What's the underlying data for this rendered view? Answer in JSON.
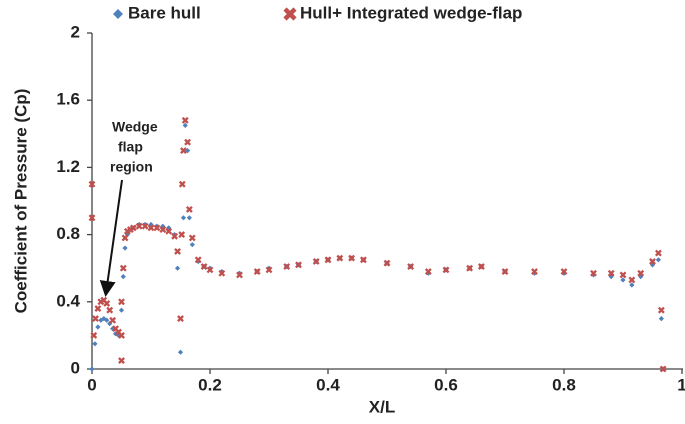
{
  "chart_data": {
    "type": "scatter",
    "xlabel": "X/L",
    "ylabel": "Coefficient of Pressure (Cp)",
    "annotation": [
      "Wedge",
      "flap",
      "region"
    ],
    "xlim": [
      0,
      1
    ],
    "xticks": [
      0,
      0.2,
      0.4,
      0.6,
      0.8,
      1
    ],
    "ylim": [
      0,
      2
    ],
    "yticks": [
      0,
      0.4,
      0.8,
      1.2,
      1.6,
      2
    ],
    "series": [
      {
        "name": "Bare hull",
        "color": "#4f81bd",
        "marker": "diamond",
        "x": [
          0,
          0.005,
          0.01,
          0.015,
          0.02,
          0.025,
          0.03,
          0.035,
          0.04,
          0.045,
          0.05,
          0.053,
          0.056,
          0.06,
          0.065,
          0.07,
          0.08,
          0.09,
          0.1,
          0.11,
          0.12,
          0.13,
          0.14,
          0.145,
          0.15,
          0.155,
          0.158,
          0.162,
          0.165,
          0.17,
          0.18,
          0.19,
          0.2,
          0.22,
          0.25,
          0.28,
          0.3,
          0.33,
          0.35,
          0.38,
          0.4,
          0.42,
          0.44,
          0.46,
          0.5,
          0.54,
          0.57,
          0.6,
          0.64,
          0.66,
          0.7,
          0.75,
          0.8,
          0.85,
          0.88,
          0.9,
          0.915,
          0.93,
          0.95,
          0.96,
          0.965,
          0.968
        ],
        "values": [
          0,
          0.15,
          0.25,
          0.29,
          0.3,
          0.29,
          0.27,
          0.24,
          0.21,
          0.2,
          0.35,
          0.55,
          0.72,
          0.8,
          0.83,
          0.84,
          0.86,
          0.86,
          0.86,
          0.85,
          0.85,
          0.84,
          0.8,
          0.6,
          0.1,
          0.9,
          1.45,
          1.3,
          0.9,
          0.74,
          0.64,
          0.61,
          0.6,
          0.58,
          0.57,
          0.58,
          0.6,
          0.61,
          0.62,
          0.64,
          0.65,
          0.66,
          0.66,
          0.65,
          0.63,
          0.61,
          0.57,
          0.59,
          0.6,
          0.61,
          0.58,
          0.57,
          0.57,
          0.56,
          0.55,
          0.53,
          0.5,
          0.55,
          0.62,
          0.65,
          0.3,
          0
        ]
      },
      {
        "name": "Hull+ Integrated wedge-flap",
        "color": "#c0504d",
        "marker": "x",
        "x": [
          0,
          0,
          0.003,
          0.006,
          0.01,
          0.015,
          0.02,
          0.025,
          0.03,
          0.035,
          0.04,
          0.045,
          0.05,
          0.05,
          0.05,
          0.053,
          0.056,
          0.06,
          0.065,
          0.07,
          0.08,
          0.09,
          0.1,
          0.11,
          0.12,
          0.13,
          0.14,
          0.145,
          0.15,
          0.152,
          0.153,
          0.155,
          0.158,
          0.162,
          0.165,
          0.17,
          0.18,
          0.19,
          0.2,
          0.22,
          0.25,
          0.28,
          0.3,
          0.33,
          0.35,
          0.38,
          0.4,
          0.42,
          0.44,
          0.46,
          0.5,
          0.54,
          0.57,
          0.6,
          0.64,
          0.66,
          0.7,
          0.75,
          0.8,
          0.85,
          0.88,
          0.9,
          0.915,
          0.93,
          0.95,
          0.96,
          0.965,
          0.968
        ],
        "values": [
          1.1,
          0.9,
          0.2,
          0.3,
          0.36,
          0.4,
          0.41,
          0.39,
          0.35,
          0.29,
          0.24,
          0.22,
          0.4,
          0.2,
          0.05,
          0.6,
          0.78,
          0.82,
          0.83,
          0.84,
          0.85,
          0.85,
          0.84,
          0.84,
          0.83,
          0.82,
          0.79,
          0.7,
          0.3,
          0.8,
          1.1,
          1.3,
          1.48,
          1.35,
          0.95,
          0.78,
          0.65,
          0.61,
          0.59,
          0.57,
          0.56,
          0.58,
          0.59,
          0.61,
          0.62,
          0.64,
          0.65,
          0.66,
          0.66,
          0.65,
          0.63,
          0.61,
          0.58,
          0.59,
          0.6,
          0.61,
          0.58,
          0.58,
          0.58,
          0.57,
          0.57,
          0.56,
          0.53,
          0.57,
          0.64,
          0.69,
          0.35,
          0
        ]
      }
    ]
  }
}
